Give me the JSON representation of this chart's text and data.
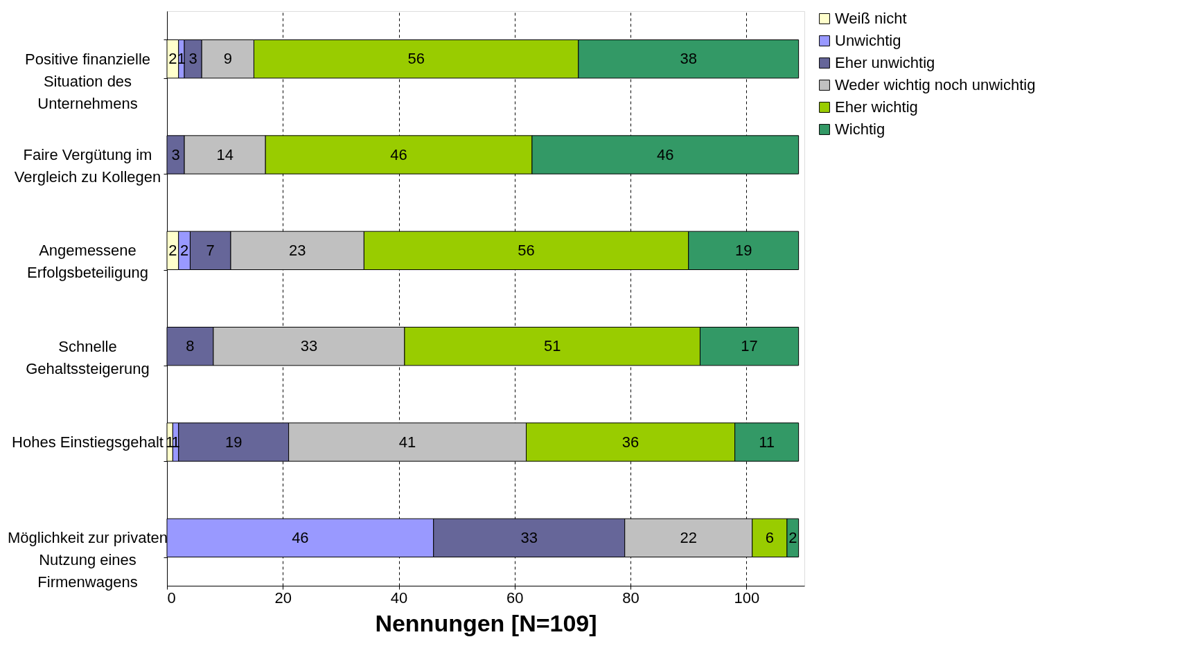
{
  "chart_data": {
    "type": "bar",
    "orientation": "horizontal",
    "stacked": true,
    "xlabel": "Nennungen [N=109]",
    "categories": [
      "Positive finanzielle\nSituation des\nUnternehmens",
      "Faire Vergütung im\nVergleich zu Kollegen",
      "Angemessene\nErfolgsbeteiligung",
      "Schnelle\nGehaltssteigerung",
      "Hohes Einstiegsgehalt",
      "Möglichkeit zur privaten\nNutzung eines\nFirmenwagens"
    ],
    "series": [
      {
        "name": "Weiß nicht",
        "color": "#ffffcc",
        "values": [
          2,
          null,
          2,
          null,
          1,
          null
        ]
      },
      {
        "name": "Unwichtig",
        "color": "#9999ff",
        "values": [
          1,
          null,
          2,
          null,
          1,
          46
        ]
      },
      {
        "name": "Eher unwichtig",
        "color": "#666699",
        "values": [
          3,
          3,
          7,
          8,
          19,
          33
        ]
      },
      {
        "name": "Weder wichtig noch unwichtig",
        "color": "#c0c0c0",
        "values": [
          9,
          14,
          23,
          33,
          41,
          22
        ]
      },
      {
        "name": "Eher wichtig",
        "color": "#99cc00",
        "values": [
          56,
          46,
          56,
          51,
          36,
          6
        ]
      },
      {
        "name": "Wichtig",
        "color": "#339966",
        "values": [
          38,
          46,
          19,
          17,
          11,
          2
        ]
      }
    ],
    "xlim": [
      0,
      110
    ],
    "xticks": [
      0,
      20,
      40,
      60,
      80,
      100
    ],
    "grid": "x",
    "line_style": "dashed",
    "legend": "right",
    "data_labels": true
  }
}
